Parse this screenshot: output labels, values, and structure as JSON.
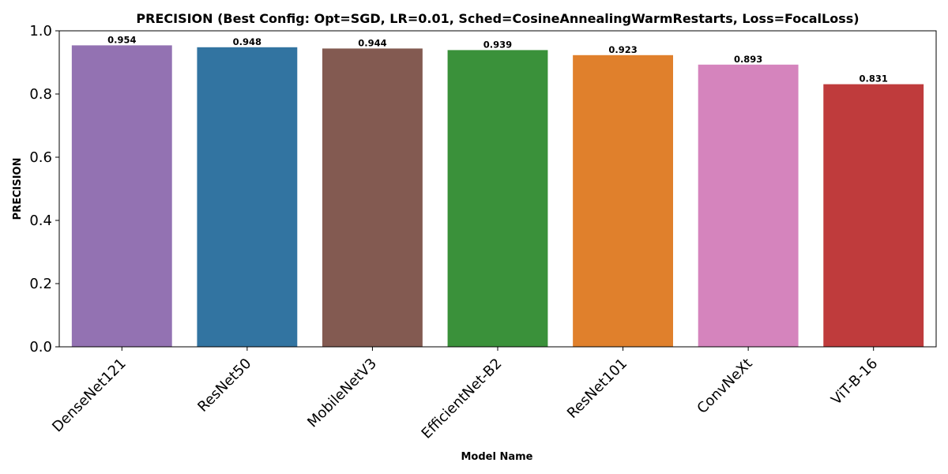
{
  "chart_data": {
    "type": "bar",
    "title": "PRECISION (Best Config: Opt=SGD, LR=0.01, Sched=CosineAnnealingWarmRestarts, Loss=FocalLoss)",
    "xlabel": "Model Name",
    "ylabel": "PRECISION",
    "ylim": [
      0,
      1.0
    ],
    "yticks": [
      0.0,
      0.2,
      0.4,
      0.6,
      0.8,
      1.0
    ],
    "ytick_labels": [
      "0.0",
      "0.2",
      "0.4",
      "0.6",
      "0.8",
      "1.0"
    ],
    "grid": false,
    "categories": [
      "DenseNet121",
      "ResNet50",
      "MobileNetV3",
      "EfficientNet-B2",
      "ResNet101",
      "ConvNeXt",
      "ViT-B-16"
    ],
    "values": [
      0.954,
      0.948,
      0.944,
      0.939,
      0.923,
      0.893,
      0.831
    ],
    "value_labels": [
      "0.954",
      "0.948",
      "0.944",
      "0.939",
      "0.923",
      "0.893",
      "0.831"
    ],
    "colors": [
      "#9372b2",
      "#3274a1",
      "#835a51",
      "#3a913a",
      "#e0802c",
      "#d584bd",
      "#bf3b3c"
    ]
  }
}
